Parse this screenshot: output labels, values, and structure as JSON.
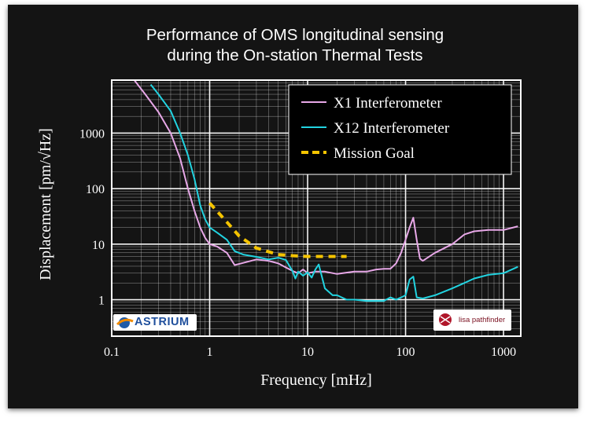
{
  "slide": {
    "title_line1": "Performance of OMS longitudinal sensing",
    "title_line2": "during the On-station Thermal Tests"
  },
  "logos": {
    "left": {
      "text": "ASTRIUM",
      "icon": "astrium-swoosh-logo"
    },
    "right": {
      "text": "lisa pathfinder",
      "icon": "lisa-pathfinder-logo"
    }
  },
  "colors": {
    "background": "#141414",
    "x1": "#e8a8e8",
    "x12": "#22d3e0",
    "goal": "#f5c400",
    "axes": "#ffffff"
  },
  "chart_data": {
    "type": "line",
    "xscale": "log",
    "yscale": "log",
    "xlabel": "Frequency [mHz]",
    "ylabel": "Displacement [pm/√Hz]",
    "xlim": [
      0.1,
      1500
    ],
    "ylim": [
      0.22,
      9000
    ],
    "xticks": [
      {
        "value": 0.1,
        "label": "0.1"
      },
      {
        "value": 1,
        "label": "1"
      },
      {
        "value": 10,
        "label": "10"
      },
      {
        "value": 100,
        "label": "100"
      },
      {
        "value": 1000,
        "label": "1000"
      }
    ],
    "yticks": [
      {
        "value": 1,
        "label": "1"
      },
      {
        "value": 10,
        "label": "10"
      },
      {
        "value": 100,
        "label": "100"
      },
      {
        "value": 1000,
        "label": "1000"
      }
    ],
    "grid": true,
    "legend_position": "top-right",
    "series": [
      {
        "name": "X1 Interferometer",
        "color": "#e8a8e8",
        "style": "solid",
        "x": [
          0.17,
          0.22,
          0.3,
          0.4,
          0.5,
          0.6,
          0.7,
          0.8,
          0.9,
          1.0,
          1.2,
          1.5,
          1.8,
          2.2,
          3,
          4,
          5,
          6,
          7,
          8,
          9,
          10,
          12,
          15,
          20,
          30,
          40,
          50,
          60,
          70,
          80,
          90,
          100,
          110,
          120,
          130,
          140,
          150,
          200,
          300,
          400,
          500,
          700,
          1000,
          1400
        ],
        "y": [
          9000,
          5000,
          2400,
          1000,
          350,
          100,
          40,
          20,
          13,
          10,
          9,
          7,
          4.2,
          4.6,
          5.3,
          5.0,
          4.5,
          3.8,
          3.3,
          3.0,
          3.5,
          3.0,
          3.2,
          3.2,
          2.9,
          3.2,
          3.2,
          3.5,
          3.6,
          3.6,
          4.5,
          7,
          12,
          20,
          30,
          12,
          5.5,
          5,
          7,
          10,
          15,
          17,
          18,
          18,
          21
        ]
      },
      {
        "name": "X12 Interferometer",
        "color": "#22d3e0",
        "style": "solid",
        "x": [
          0.25,
          0.3,
          0.4,
          0.5,
          0.6,
          0.7,
          0.8,
          0.9,
          1.0,
          1.2,
          1.5,
          1.8,
          2.2,
          3,
          4,
          5,
          6,
          7,
          7.5,
          8,
          9,
          10,
          11,
          12,
          13,
          15,
          18,
          20,
          25,
          30,
          40,
          50,
          60,
          70,
          80,
          90,
          100,
          110,
          120,
          130,
          150,
          200,
          300,
          400,
          500,
          700,
          1000,
          1400
        ],
        "y": [
          7500,
          5000,
          2500,
          1000,
          400,
          150,
          50,
          28,
          20,
          16,
          12,
          7.5,
          6.5,
          5.9,
          5.3,
          5.7,
          5.2,
          3.3,
          2.4,
          3.2,
          2.7,
          3.1,
          2.5,
          3.5,
          4.3,
          1.6,
          1.2,
          1.2,
          1.0,
          1.0,
          0.95,
          0.95,
          0.95,
          1.1,
          1.0,
          1.1,
          1.2,
          2.3,
          2.6,
          1.1,
          1.05,
          1.2,
          1.6,
          2.0,
          2.4,
          2.8,
          3.0,
          3.9
        ]
      },
      {
        "name": "Mission Goal",
        "color": "#f5c400",
        "style": "dashed",
        "x": [
          1,
          1.5,
          2,
          3,
          5,
          7,
          10,
          15,
          20,
          25
        ],
        "y": [
          55,
          25,
          14,
          8.5,
          6.5,
          6.2,
          6.0,
          6.0,
          6.0,
          6.0
        ]
      }
    ]
  }
}
